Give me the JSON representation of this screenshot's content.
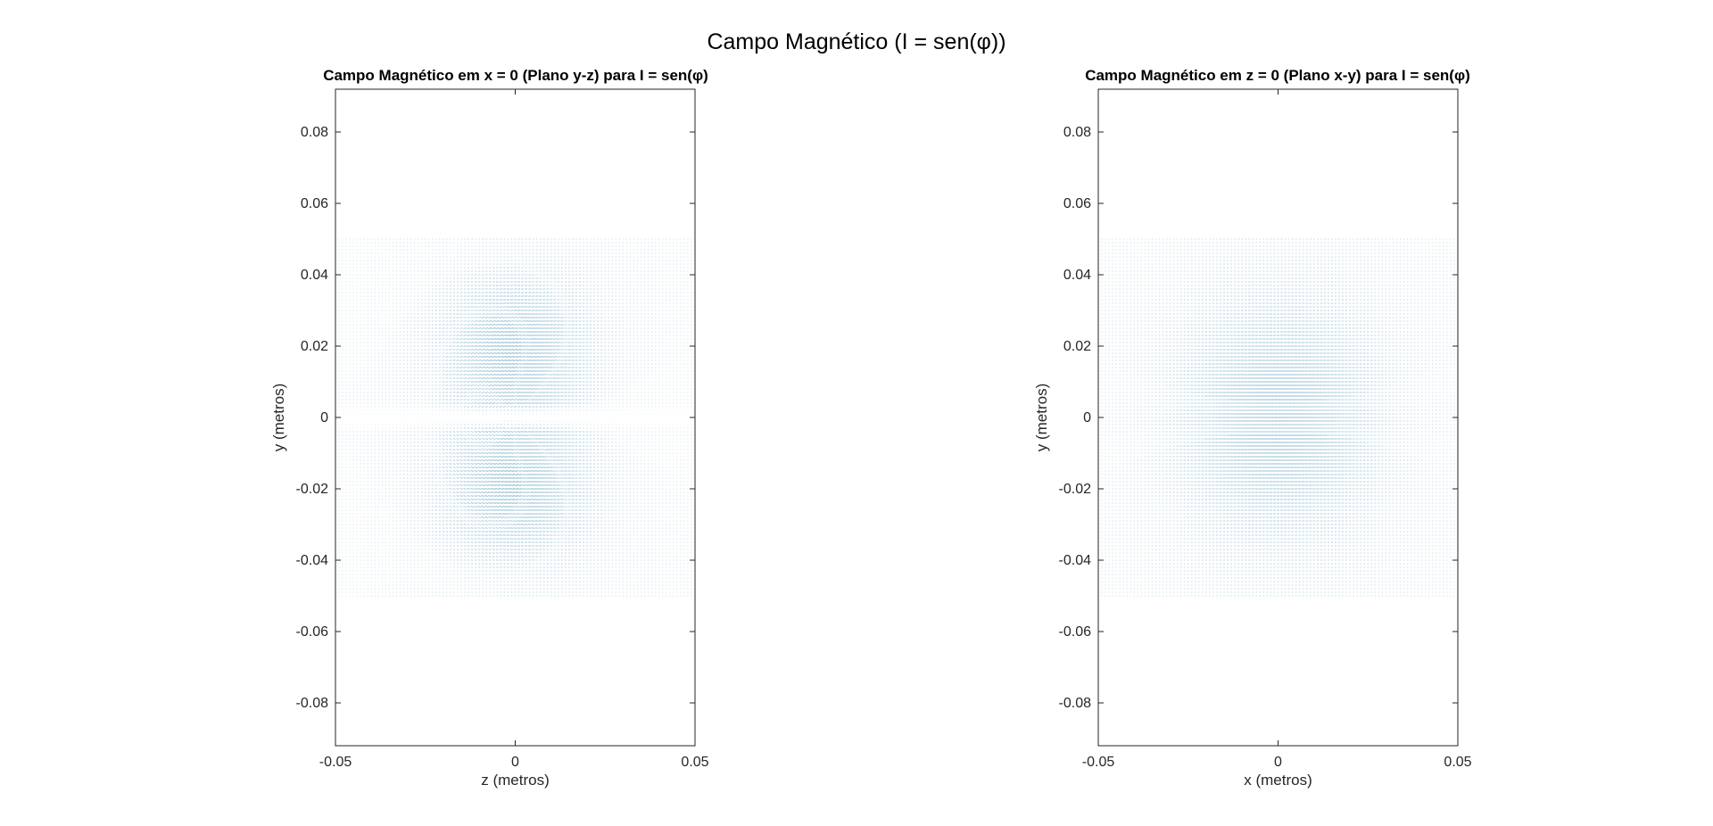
{
  "figure_title": "Campo Magnético (I = sen(φ))",
  "chart_data": [
    {
      "type": "quiver",
      "title": "Campo Magnético em x = 0 (Plano y-z) para I = sen(φ)",
      "xlabel": "z (metros)",
      "ylabel": "y (metros)",
      "xlim": [
        -0.05,
        0.05
      ],
      "ylim": [
        -0.092,
        0.092
      ],
      "xticks": [
        -0.05,
        0,
        0.05
      ],
      "xtick_labels": [
        "-0.05",
        "0",
        "0.05"
      ],
      "yticks": [
        -0.08,
        -0.06,
        -0.04,
        -0.02,
        0,
        0.02,
        0.04,
        0.06,
        0.08
      ],
      "ytick_labels": [
        "-0.08",
        "-0.06",
        "-0.04",
        "-0.02",
        "0",
        "0.02",
        "0.04",
        "0.06",
        "0.08"
      ],
      "grid": false,
      "arrow_color": "#2a7fa6",
      "field_region": {
        "x": [
          -0.05,
          0.05
        ],
        "y": [
          -0.05,
          0.05
        ]
      },
      "field_samples": {
        "x_count": 101,
        "y_count": 101
      },
      "field_pattern": "two lobes centered at y = ±0.02, near-zero along y = 0"
    },
    {
      "type": "quiver",
      "title": "Campo Magnético em z = 0 (Plano x-y) para I = sen(φ)",
      "xlabel": "x (metros)",
      "ylabel": "y (metros)",
      "xlim": [
        -0.05,
        0.05
      ],
      "ylim": [
        -0.092,
        0.092
      ],
      "xticks": [
        -0.05,
        0,
        0.05
      ],
      "xtick_labels": [
        "-0.05",
        "0",
        "0.05"
      ],
      "yticks": [
        -0.08,
        -0.06,
        -0.04,
        -0.02,
        0,
        0.02,
        0.04,
        0.06,
        0.08
      ],
      "ytick_labels": [
        "-0.08",
        "-0.06",
        "-0.04",
        "-0.02",
        "0",
        "0.02",
        "0.04",
        "0.06",
        "0.08"
      ],
      "grid": false,
      "arrow_color": "#2a7fa6",
      "field_region": {
        "x": [
          -0.05,
          0.05
        ],
        "y": [
          -0.05,
          0.05
        ]
      },
      "field_samples": {
        "x_count": 101,
        "y_count": 101
      },
      "field_pattern": "mostly horizontal arrows, strongest near the center"
    }
  ]
}
